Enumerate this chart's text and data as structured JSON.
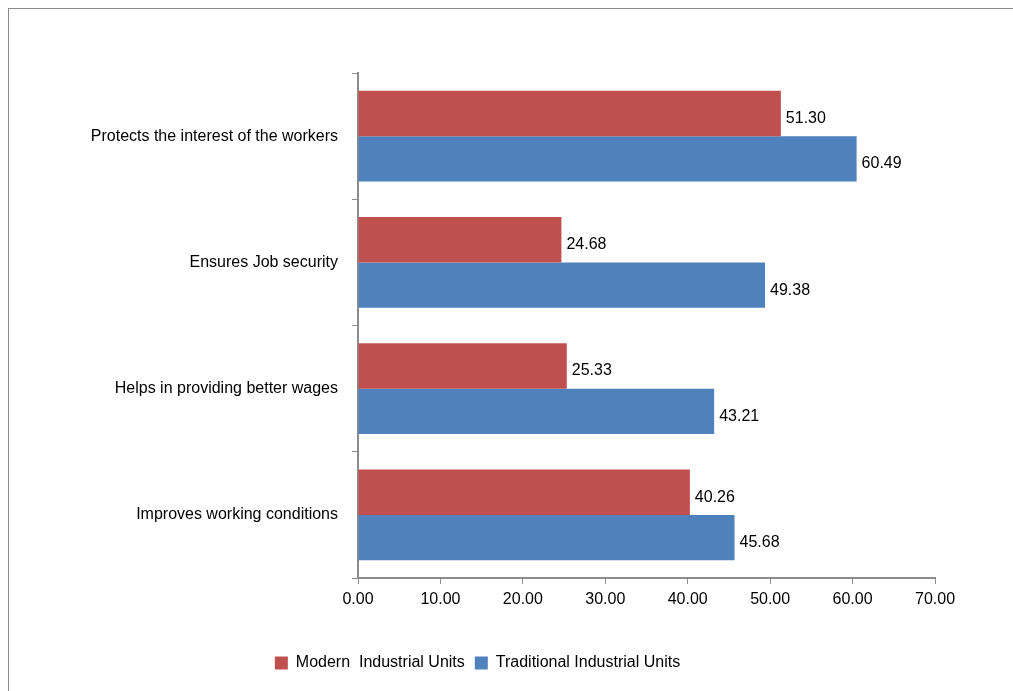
{
  "chart_data": {
    "type": "bar",
    "orientation": "horizontal",
    "categories": [
      "Protects the interest of the workers",
      "Ensures Job security",
      "Helps in providing better wages",
      "Improves working conditions"
    ],
    "series": [
      {
        "name": "Modern  Industrial Units",
        "color": "#c0504d",
        "values": [
          51.3,
          24.68,
          25.33,
          40.26
        ],
        "value_labels": [
          "51.30",
          "24.68",
          "25.33",
          "40.26"
        ]
      },
      {
        "name": "Traditional Industrial Units",
        "color": "#4f81bd",
        "values": [
          60.49,
          49.38,
          43.21,
          45.68
        ],
        "value_labels": [
          "60.49",
          "49.38",
          "43.21",
          "45.68"
        ]
      }
    ],
    "xlim": [
      0,
      70
    ],
    "xticks": [
      {
        "value": 0,
        "label": "0.00"
      },
      {
        "value": 10,
        "label": "10.00"
      },
      {
        "value": 20,
        "label": "20.00"
      },
      {
        "value": 30,
        "label": "30.00"
      },
      {
        "value": 40,
        "label": "40.00"
      },
      {
        "value": 50,
        "label": "50.00"
      },
      {
        "value": 60,
        "label": "60.00"
      },
      {
        "value": 70,
        "label": "70.00"
      }
    ],
    "grid": false,
    "legend": "bottom"
  }
}
